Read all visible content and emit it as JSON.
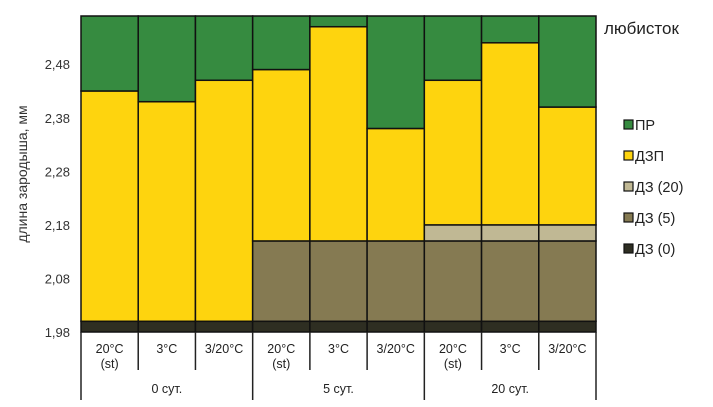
{
  "chart_data": {
    "type": "bar",
    "stacked": true,
    "title": "любисток",
    "ylabel": "длина зародыша, мм",
    "xlabel": "",
    "ylim": [
      1.98,
      2.57
    ],
    "yticks": [
      "1,98",
      "2,08",
      "2,18",
      "2,28",
      "2,38",
      "2,48"
    ],
    "ytick_values": [
      1.98,
      2.08,
      2.18,
      2.28,
      2.38,
      2.48
    ],
    "categories": [
      [
        "20°C",
        "(st)"
      ],
      [
        "3°C",
        ""
      ],
      [
        "3/20°C",
        ""
      ],
      [
        "20°C",
        "(st)"
      ],
      [
        "3°C",
        ""
      ],
      [
        "3/20°C",
        ""
      ],
      [
        "20°C",
        "(st)"
      ],
      [
        "3°C",
        ""
      ],
      [
        "3/20°C",
        ""
      ]
    ],
    "groups": [
      "0 сут.",
      "5 сут.",
      "20 сут."
    ],
    "legend_position": "right",
    "series": [
      {
        "name": "ДЗ (0)",
        "color": "#2e2e22",
        "tops": [
          2.0,
          2.0,
          2.0,
          2.0,
          2.0,
          2.0,
          2.0,
          2.0,
          2.0
        ]
      },
      {
        "name": "ДЗ (5)",
        "color": "#857a52",
        "tops": [
          2.0,
          2.0,
          2.0,
          2.15,
          2.15,
          2.15,
          2.15,
          2.15,
          2.15
        ]
      },
      {
        "name": "ДЗ (20)",
        "color": "#c0b894",
        "tops": [
          2.0,
          2.0,
          2.0,
          2.15,
          2.15,
          2.15,
          2.18,
          2.18,
          2.18
        ]
      },
      {
        "name": "ДЗП",
        "color": "#fed40e",
        "tops": [
          2.43,
          2.41,
          2.45,
          2.47,
          2.55,
          2.36,
          2.45,
          2.52,
          2.4
        ]
      },
      {
        "name": "ПР",
        "color": "#368b40",
        "tops": [
          2.57,
          2.57,
          2.57,
          2.57,
          2.57,
          2.57,
          2.57,
          2.57,
          2.57
        ]
      }
    ]
  }
}
